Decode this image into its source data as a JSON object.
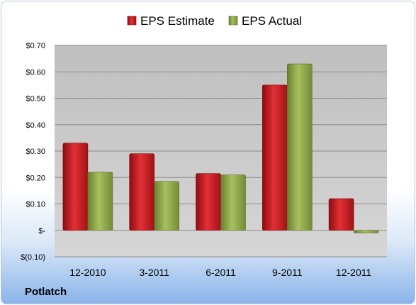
{
  "company": "Potlatch",
  "chart_data": {
    "type": "bar",
    "categories": [
      "12-2010",
      "3-2011",
      "6-2011",
      "9-2011",
      "12-2011"
    ],
    "series": [
      {
        "name": "EPS Estimate",
        "color": "#c8191e",
        "values": [
          0.33,
          0.29,
          0.215,
          0.55,
          0.12
        ]
      },
      {
        "name": "EPS Actual",
        "color": "#8fa84a",
        "values": [
          0.22,
          0.185,
          0.21,
          0.63,
          -0.01
        ]
      }
    ],
    "yticks": [
      {
        "value": 0.7,
        "label": "$0.70"
      },
      {
        "value": 0.6,
        "label": "$0.60"
      },
      {
        "value": 0.5,
        "label": "$0.50"
      },
      {
        "value": 0.4,
        "label": "$0.40"
      },
      {
        "value": 0.3,
        "label": "$0.30"
      },
      {
        "value": 0.2,
        "label": "$0.20"
      },
      {
        "value": 0.1,
        "label": "$0.10"
      },
      {
        "value": 0.0,
        "label": "$-"
      },
      {
        "value": -0.1,
        "label": "$(0.10)"
      }
    ],
    "ylim": [
      -0.1,
      0.7
    ],
    "grid": true,
    "legend_position": "top-center",
    "title": "",
    "xlabel": "",
    "ylabel": ""
  }
}
